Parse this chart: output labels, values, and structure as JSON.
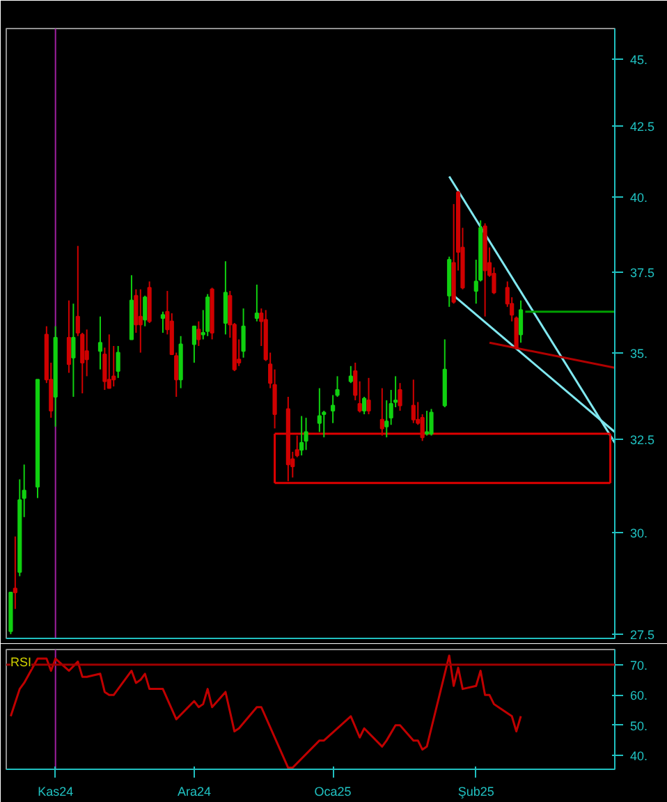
{
  "chart_data": [
    {
      "type": "candlestick",
      "log": true,
      "tick_labels": "y",
      "grid": false,
      "x": [
        "2024-10-22",
        "2024-10-23",
        "2024-10-24",
        "2024-10-25",
        "2024-10-28",
        "2024-10-30",
        "2024-10-31",
        "2024-11-01",
        "2024-11-04",
        "2024-11-05",
        "2024-11-06",
        "2024-11-07",
        "2024-11-08",
        "2024-11-11",
        "2024-11-12",
        "2024-11-13",
        "2024-11-14",
        "2024-11-15",
        "2024-11-18",
        "2024-11-19",
        "2024-11-20",
        "2024-11-21",
        "2024-11-22",
        "2024-11-25",
        "2024-11-26",
        "2024-11-27",
        "2024-11-28",
        "2024-11-29",
        "2024-12-02",
        "2024-12-03",
        "2024-12-04",
        "2024-12-05",
        "2024-12-06",
        "2024-12-09",
        "2024-12-10",
        "2024-12-11",
        "2024-12-12",
        "2024-12-13",
        "2024-12-16",
        "2024-12-17",
        "2024-12-18",
        "2024-12-19",
        "2024-12-20",
        "2024-12-23",
        "2024-12-24",
        "2024-12-25",
        "2024-12-26",
        "2024-12-27",
        "2024-12-30",
        "2024-12-31",
        "2025-01-02",
        "2025-01-03",
        "2025-01-06",
        "2025-01-07",
        "2025-01-08",
        "2025-01-09",
        "2025-01-10",
        "2025-01-13",
        "2025-01-14",
        "2025-01-15",
        "2025-01-16",
        "2025-01-17",
        "2025-01-20",
        "2025-01-21",
        "2025-01-22",
        "2025-01-23",
        "2025-01-24",
        "2025-01-27",
        "2025-01-28",
        "2025-01-29",
        "2025-01-30",
        "2025-01-31",
        "2025-02-03",
        "2025-02-04",
        "2025-02-05",
        "2025-02-06",
        "2025-02-07",
        "2025-02-10",
        "2025-02-11",
        "2025-02-12",
        "2025-02-13"
      ],
      "ohlc": [
        [
          27.57,
          28.5,
          27.5,
          28.5
        ],
        [
          28.6,
          29.9,
          28.1,
          28.5
        ],
        [
          29.0,
          31.4,
          28.9,
          30.85
        ],
        [
          30.9,
          31.8,
          30.4,
          31.1
        ],
        [
          31.2,
          34.2,
          30.9,
          34.2
        ],
        [
          35.55,
          35.8,
          34.1,
          34.2
        ],
        [
          34.2,
          34.7,
          33.1,
          33.3
        ],
        [
          33.7,
          35.8,
          32.85,
          35.45
        ],
        [
          35.45,
          36.6,
          34.4,
          34.65
        ],
        [
          34.85,
          36.5,
          33.7,
          35.45
        ],
        [
          36.1,
          38.35,
          35.5,
          35.6
        ],
        [
          35.55,
          35.6,
          33.8,
          34.7
        ],
        [
          35.05,
          35.7,
          34.3,
          34.8
        ],
        [
          35.05,
          36.1,
          34.5,
          35.3
        ],
        [
          34.95,
          35.15,
          33.9,
          34.15
        ],
        [
          34.2,
          35.55,
          33.95,
          33.95
        ],
        [
          34.3,
          35.2,
          34.0,
          34.2
        ],
        [
          34.45,
          35.2,
          34.25,
          35.0
        ],
        [
          35.4,
          37.4,
          35.4,
          36.6
        ],
        [
          36.75,
          36.95,
          35.6,
          35.85
        ],
        [
          36.1,
          36.95,
          35.0,
          35.85
        ],
        [
          36.0,
          36.75,
          35.8,
          36.7
        ],
        [
          37.0,
          37.2,
          35.9,
          35.95
        ],
        [
          36.05,
          36.25,
          35.6,
          36.15
        ],
        [
          36.25,
          36.9,
          35.55,
          35.7
        ],
        [
          35.95,
          36.2,
          34.95,
          34.95
        ],
        [
          34.9,
          35.0,
          33.7,
          34.2
        ],
        [
          34.2,
          35.5,
          33.95,
          35.25
        ],
        [
          35.25,
          35.8,
          34.7,
          35.8
        ],
        [
          35.7,
          35.95,
          35.2,
          35.4
        ],
        [
          35.55,
          36.3,
          35.4,
          35.6
        ],
        [
          35.65,
          36.8,
          35.5,
          36.7
        ],
        [
          36.95,
          37.0,
          35.4,
          35.6
        ],
        [
          35.9,
          37.85,
          35.55,
          36.85
        ],
        [
          36.75,
          36.9,
          35.45,
          35.85
        ],
        [
          35.85,
          35.9,
          34.45,
          34.5
        ],
        [
          34.8,
          35.4,
          34.6,
          34.7
        ],
        [
          35.05,
          36.35,
          34.85,
          35.8
        ],
        [
          36.05,
          37.1,
          35.95,
          36.2
        ],
        [
          36.2,
          36.35,
          35.2,
          35.95
        ],
        [
          36.0,
          36.3,
          34.75,
          34.8
        ],
        [
          34.65,
          35.0,
          33.95,
          34.1
        ],
        [
          34.05,
          34.5,
          32.8,
          33.2
        ],
        [
          33.35,
          33.7,
          31.35,
          31.8
        ],
        [
          31.95,
          32.15,
          31.45,
          31.75
        ],
        [
          32.2,
          32.6,
          32.0,
          32.05
        ],
        [
          32.2,
          33.15,
          32.05,
          32.4
        ],
        [
          32.45,
          33.1,
          32.2,
          32.7
        ],
        [
          32.95,
          33.95,
          32.7,
          33.15
        ],
        [
          33.2,
          33.3,
          32.55,
          33.25
        ],
        [
          33.3,
          33.75,
          32.95,
          33.45
        ],
        [
          33.75,
          34.3,
          33.7,
          33.9
        ],
        [
          34.15,
          34.6,
          34.1,
          34.3
        ],
        [
          34.45,
          34.7,
          33.6,
          33.75
        ],
        [
          33.5,
          34.15,
          33.25,
          33.3
        ],
        [
          33.3,
          33.7,
          33.2,
          33.65
        ],
        [
          33.6,
          34.25,
          33.2,
          33.3
        ],
        [
          33.05,
          33.95,
          32.6,
          32.8
        ],
        [
          32.85,
          33.6,
          32.55,
          33.0
        ],
        [
          33.1,
          33.9,
          32.9,
          33.5
        ],
        [
          33.55,
          34.3,
          33.4,
          33.6
        ],
        [
          33.9,
          34.1,
          33.3,
          33.45
        ],
        [
          33.45,
          34.2,
          32.95,
          33.05
        ],
        [
          33.05,
          33.55,
          32.9,
          32.95
        ],
        [
          33.1,
          33.2,
          32.45,
          32.55
        ],
        [
          32.65,
          33.3,
          32.6,
          32.7
        ],
        [
          32.65,
          33.35,
          32.6,
          33.25
        ],
        [
          33.45,
          35.4,
          33.4,
          34.5
        ],
        [
          36.75,
          38.0,
          36.4,
          37.9
        ],
        [
          37.8,
          39.75,
          36.5,
          36.55
        ],
        [
          40.15,
          40.2,
          37.55,
          38.15
        ],
        [
          38.3,
          38.95,
          36.95,
          37.0
        ],
        [
          36.9,
          37.9,
          36.5,
          37.2
        ],
        [
          37.25,
          39.2,
          37.2,
          38.95
        ],
        [
          39.0,
          39.1,
          36.1,
          37.55
        ],
        [
          37.8,
          38.3,
          37.35,
          37.4
        ],
        [
          37.45,
          37.65,
          36.8,
          36.85
        ],
        [
          37.0,
          37.2,
          36.4,
          36.5
        ],
        [
          36.5,
          36.7,
          35.95,
          36.15
        ],
        [
          36.05,
          36.1,
          35.1,
          35.15
        ],
        [
          35.55,
          36.6,
          35.3,
          36.3
        ]
      ],
      "series": [
        {
          "type": "line",
          "color": "#80e8f0",
          "x": [
            "2025-01-28",
            "2025-03-06"
          ],
          "values": [
            40.7,
            32.4
          ]
        },
        {
          "type": "line",
          "color": "#80e8f0",
          "x": [
            "2025-01-29",
            "2025-03-06"
          ],
          "values": [
            36.75,
            32.7
          ]
        },
        {
          "type": "line",
          "color": "#b00000",
          "x": [
            "2025-02-06",
            "2025-03-06"
          ],
          "values": [
            35.3,
            34.55
          ]
        },
        {
          "type": "line",
          "color": "#00a000",
          "x": [
            "2025-02-14",
            "2025-03-06"
          ],
          "values": [
            36.25,
            36.25
          ]
        },
        {
          "type": "line",
          "color": "#e00000",
          "x": [
            "2024-12-20",
            "2025-03-05"
          ],
          "values": [
            32.65,
            32.65
          ]
        },
        {
          "type": "line",
          "color": "#e00000",
          "x": [
            "2024-12-20",
            "2025-03-05"
          ],
          "values": [
            31.3,
            31.3
          ]
        },
        {
          "type": "line",
          "color": "#e00000",
          "x": [
            "2024-12-20",
            "2024-12-20"
          ],
          "values": [
            32.65,
            31.3
          ]
        },
        {
          "type": "line",
          "color": "#e00000",
          "x": [
            "2025-03-05",
            "2025-03-05"
          ],
          "values": [
            32.65,
            31.3
          ]
        }
      ],
      "ref_lines": [
        {
          "axis": "x",
          "value": "2024-11-01",
          "color": "#a020a0"
        }
      ],
      "xlim": [
        "2024-10-21",
        "2025-03-06"
      ],
      "ylim": [
        27.4,
        46.2
      ],
      "yticks": [
        27.5,
        {
          "value": 30,
          "label": "30."
        },
        32.5,
        {
          "value": 35,
          "label": "35."
        },
        37.5,
        {
          "value": 40,
          "label": "40."
        },
        42.5,
        {
          "value": 45,
          "label": "45."
        }
      ]
    },
    {
      "type": "line",
      "title": "RSI",
      "color": "#c00000",
      "grid": false,
      "x": [
        "2024-10-22",
        "2024-10-24",
        "2024-10-25",
        "2024-10-28",
        "2024-10-30",
        "2024-10-31",
        "2024-11-01",
        "2024-11-04",
        "2024-11-06",
        "2024-11-07",
        "2024-11-08",
        "2024-11-11",
        "2024-11-12",
        "2024-11-13",
        "2024-11-14",
        "2024-11-18",
        "2024-11-19",
        "2024-11-20",
        "2024-11-21",
        "2024-11-22",
        "2024-11-25",
        "2024-11-28",
        "2024-12-02",
        "2024-12-03",
        "2024-12-04",
        "2024-12-05",
        "2024-12-06",
        "2024-12-09",
        "2024-12-11",
        "2024-12-12",
        "2024-12-16",
        "2024-12-17",
        "2024-12-23",
        "2024-12-24",
        "2024-12-30",
        "2024-12-31",
        "2025-01-06",
        "2025-01-08",
        "2025-01-09",
        "2025-01-13",
        "2025-01-14",
        "2025-01-16",
        "2025-01-17",
        "2025-01-20",
        "2025-01-21",
        "2025-01-22",
        "2025-01-23",
        "2025-01-24",
        "2025-01-28",
        "2025-01-29",
        "2025-01-30",
        "2025-01-31",
        "2025-02-03",
        "2025-02-04",
        "2025-02-05",
        "2025-02-06",
        "2025-02-07",
        "2025-02-11",
        "2025-02-12",
        "2025-02-13"
      ],
      "values": [
        53,
        62,
        64,
        72,
        72,
        68,
        72,
        68,
        71,
        66,
        66,
        67,
        61,
        60,
        60,
        68,
        64,
        65,
        67,
        62,
        62,
        52,
        58,
        56,
        57,
        62,
        56,
        61,
        48,
        49,
        56,
        56,
        36,
        36,
        45,
        45,
        53,
        46,
        49,
        43,
        45,
        50,
        50,
        45,
        45,
        42,
        43,
        49,
        73,
        63,
        69,
        62,
        63,
        68,
        60,
        60,
        57,
        53,
        48,
        53
      ],
      "ref_lines": [
        {
          "axis": "y",
          "value": 70,
          "color": "#a00000"
        },
        {
          "axis": "x",
          "value": "2024-11-01",
          "color": "#a020a0"
        }
      ],
      "xlim": [
        "2024-10-21",
        "2025-03-06"
      ],
      "ylim": [
        35.5,
        75
      ],
      "xticks": [
        {
          "value": "2024-11-01",
          "label": "Kas24"
        },
        {
          "value": "2024-12-02",
          "label": "Ara24"
        },
        {
          "value": "2025-01-02",
          "label": "Oca25"
        },
        {
          "value": "2025-02-03",
          "label": "Şub25"
        }
      ],
      "yticks": [
        {
          "value": 40,
          "label": "40."
        },
        {
          "value": 50,
          "label": "50."
        },
        {
          "value": 60,
          "label": "60."
        },
        {
          "value": 70,
          "label": "70."
        }
      ]
    }
  ]
}
